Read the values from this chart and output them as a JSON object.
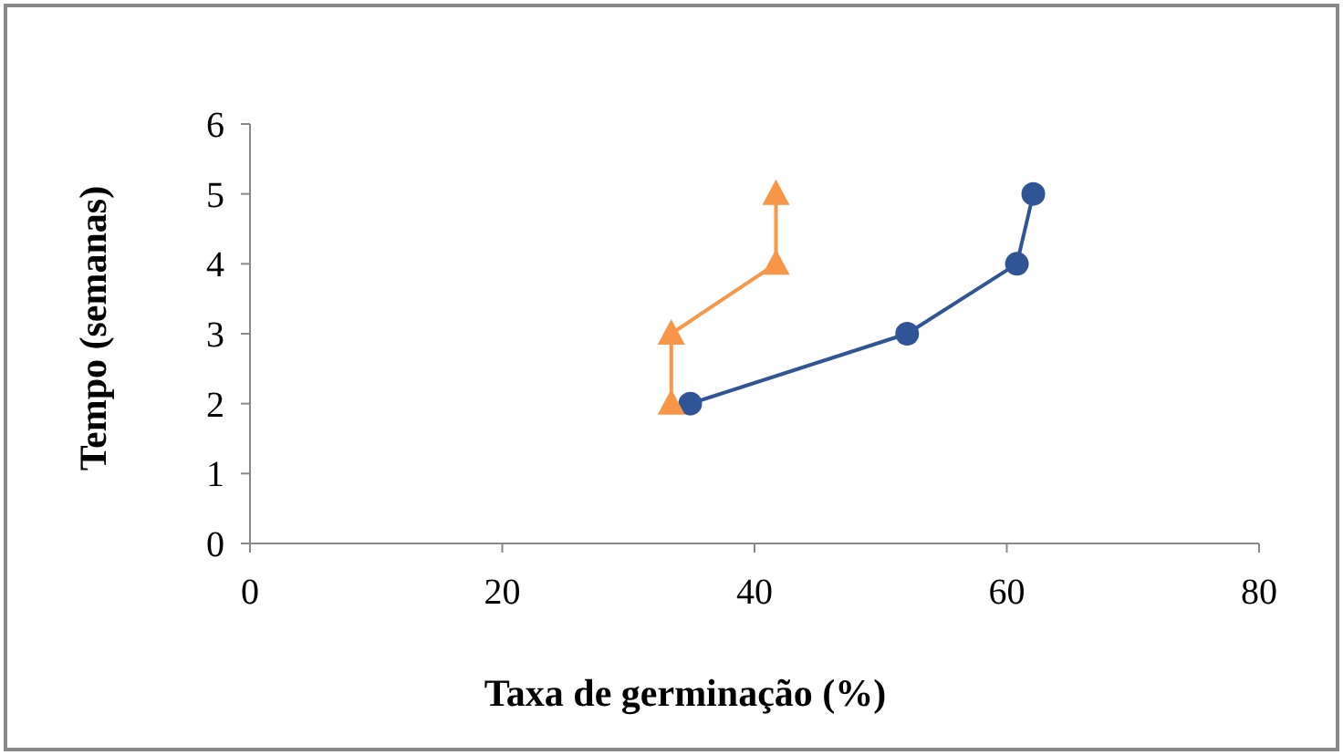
{
  "chart_data": {
    "type": "line",
    "xlabel": "Taxa de germinação (%)",
    "ylabel": "Tempo (semanas)",
    "xlim": [
      0,
      80
    ],
    "xticks": [
      0,
      20,
      40,
      60,
      80
    ],
    "ylim": [
      0,
      6
    ],
    "yticks": [
      0,
      1,
      2,
      3,
      4,
      5,
      6
    ],
    "grid": false,
    "series": [
      {
        "color": "#2f5597",
        "marker": "circle",
        "x": [
          34.9,
          52.1,
          60.8,
          62.1
        ],
        "values": [
          2,
          3,
          4,
          5
        ]
      },
      {
        "color": "#f79646",
        "marker": "triangle",
        "x": [
          33.4,
          33.4,
          41.7,
          41.7
        ],
        "values": [
          2,
          3,
          4,
          5
        ]
      }
    ]
  }
}
